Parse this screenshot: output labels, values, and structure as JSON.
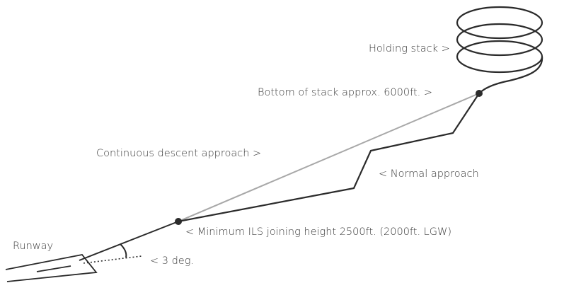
{
  "labels": {
    "holding_stack": "Holding stack >",
    "bottom_of_stack": "Bottom of stack approx. 6000ft. >",
    "continuous_descent": "Continuous descent approach >",
    "normal_approach": "< Normal approach",
    "minimum_ils": "< Minimum ILS joining height 2500ft. (2000ft. LGW)",
    "runway": "Runway",
    "glide_angle": "< 3 deg."
  }
}
